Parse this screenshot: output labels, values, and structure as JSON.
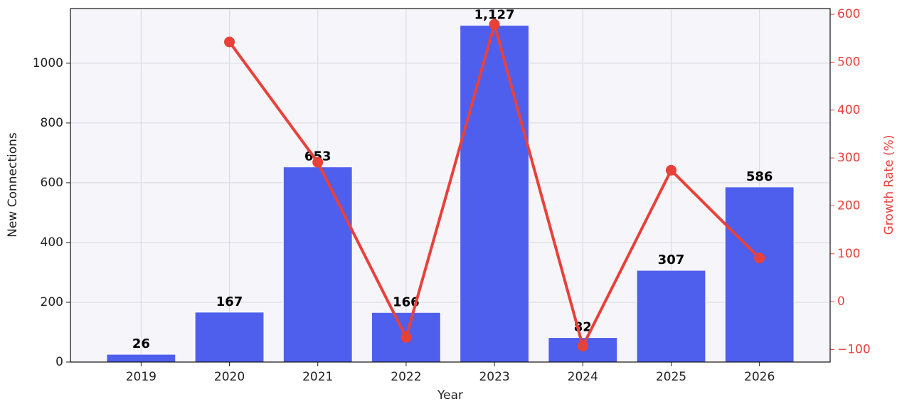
{
  "chart_data": {
    "type": "bar",
    "xlabel": "Year",
    "ylabel": "New Connections",
    "y2label": "Growth Rate (%)",
    "categories": [
      "2019",
      "2020",
      "2021",
      "2022",
      "2023",
      "2024",
      "2025",
      "2026"
    ],
    "series": [
      {
        "name": "New Connections",
        "type": "bar",
        "color": "#4f5fed",
        "values": [
          26,
          167,
          653,
          166,
          1127,
          82,
          307,
          586
        ],
        "value_labels": [
          "26",
          "167",
          "653",
          "166",
          "1,127",
          "82",
          "307",
          "586"
        ]
      },
      {
        "name": "Growth Rate (%)",
        "type": "line",
        "axis": "y2",
        "color": "#e8413a",
        "values": [
          null,
          542.3,
          291.0,
          -74.6,
          578.9,
          -92.7,
          274.4,
          90.9
        ]
      }
    ],
    "ylim": [
      0,
      1183
    ],
    "yticks": [
      0,
      200,
      400,
      600,
      800,
      1000
    ],
    "y2lim": [
      -126,
      612
    ],
    "y2ticks": [
      {
        "value": -100,
        "label": "−100"
      },
      0,
      100,
      200,
      300,
      400,
      500,
      600
    ],
    "grid": true
  }
}
